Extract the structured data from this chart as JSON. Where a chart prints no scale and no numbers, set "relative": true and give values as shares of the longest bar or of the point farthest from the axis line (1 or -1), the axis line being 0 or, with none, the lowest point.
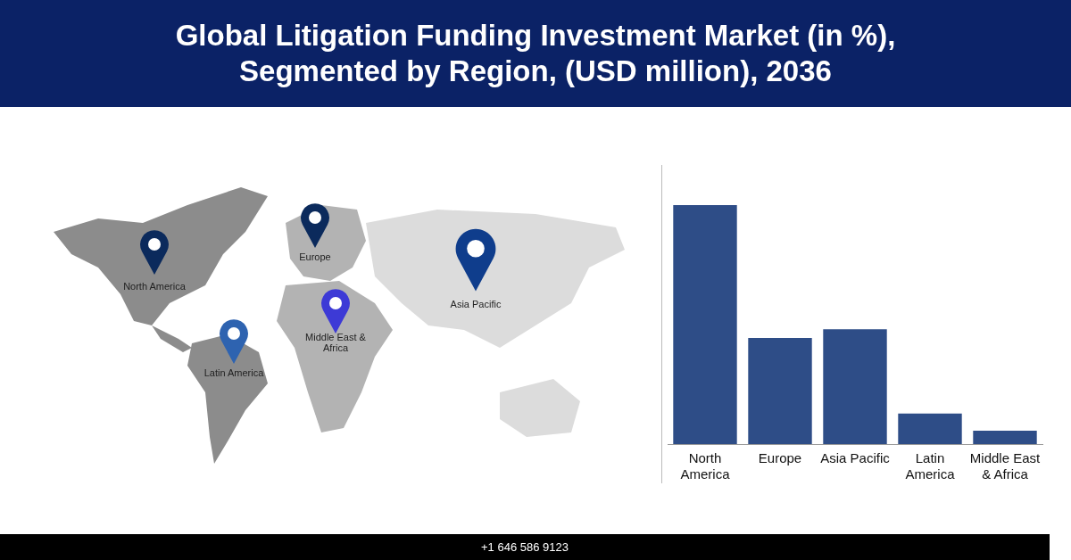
{
  "chart_data": {
    "type": "bar",
    "title": "Global Litigation Funding Investment Market (in %), Segmented by Region, (USD million), 2036",
    "categories": [
      "North America",
      "Europe",
      "Asia Pacific",
      "Latin America",
      "Middle East & Africa"
    ],
    "values": [
      1,
      0.444,
      0.48,
      0.128,
      0.056
    ],
    "color": "#2e4d87",
    "relative": true,
    "grid": false,
    "legend": false,
    "annotations": [
      "+1 646 586 9123"
    ]
  }
}
